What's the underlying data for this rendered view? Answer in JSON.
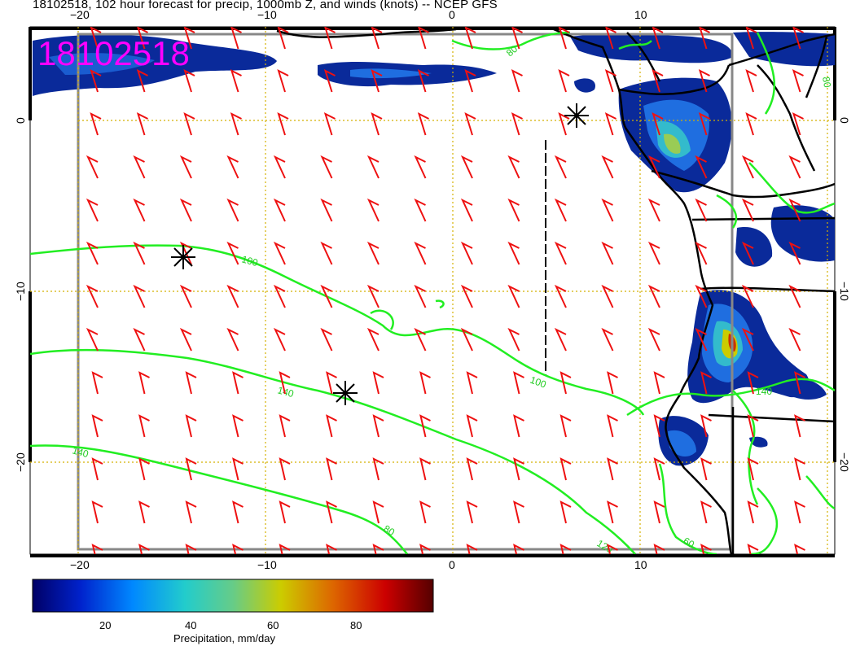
{
  "title": "18102518, 102 hour forecast for precip, 1000mb Z, and winds (knots) -- NCEP GFS",
  "stamp": "18102518",
  "axes": {
    "lon_ticks": [
      "−20",
      "−10",
      "0",
      "10"
    ],
    "lat_ticks": [
      "0",
      "−10",
      "−20"
    ]
  },
  "contours": {
    "color": "#22ee22",
    "labels": [
      "100",
      "100",
      "120",
      "140",
      "140",
      "140",
      "80",
      "80",
      "60",
      "80"
    ]
  },
  "colorbar": {
    "ticks": [
      "20",
      "40",
      "60",
      "80"
    ],
    "label": "Precipitation, mm/day",
    "colors": [
      "#000066",
      "#0033cc",
      "#0099ff",
      "#33cccc",
      "#99cc66",
      "#cccc00",
      "#cc6600",
      "#cc0000",
      "#660000"
    ]
  },
  "wind_barb_color": "#ee1111",
  "map_markers": [
    "asterisk",
    "asterisk",
    "asterisk"
  ]
}
